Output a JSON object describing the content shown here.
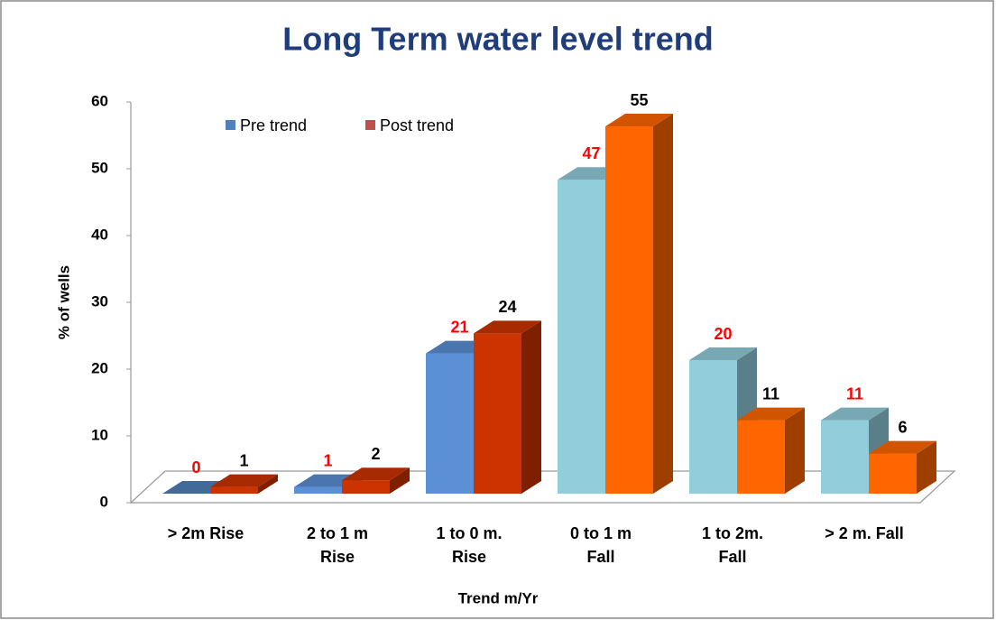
{
  "chart_data": {
    "type": "bar3d",
    "title": "Long Term water level trend",
    "x_label": "Trend m/Yr",
    "y_label": "% of wells",
    "categories": [
      "> 2m Rise",
      "2 to 1 m\nRise",
      "1 to 0 m.\nRise",
      "0 to 1 m\nFall",
      "1 to 2m.\nFall",
      "> 2 m. Fall"
    ],
    "series": [
      {
        "name": "Pre trend",
        "color": "#4f81bd",
        "label_color": "#ff0000",
        "colors": [
          "#4f81bd",
          "#5b8fd6",
          "#5b8fd6",
          "#92cddc",
          "#92cddc",
          "#92cddc"
        ],
        "values": [
          0,
          1,
          21,
          47,
          20,
          11
        ]
      },
      {
        "name": "Post trend",
        "color": "#c0504d",
        "label_color": "#000000",
        "colors": [
          "#cc3300",
          "#cc3300",
          "#cc3300",
          "#ff6600",
          "#ff6600",
          "#ff6600"
        ],
        "values": [
          1,
          2,
          24,
          55,
          11,
          6
        ]
      }
    ],
    "ylim": [
      0,
      60
    ],
    "yticks": [
      0,
      10,
      20,
      30,
      40,
      50,
      60
    ],
    "grid": false,
    "legend": "top-left"
  }
}
